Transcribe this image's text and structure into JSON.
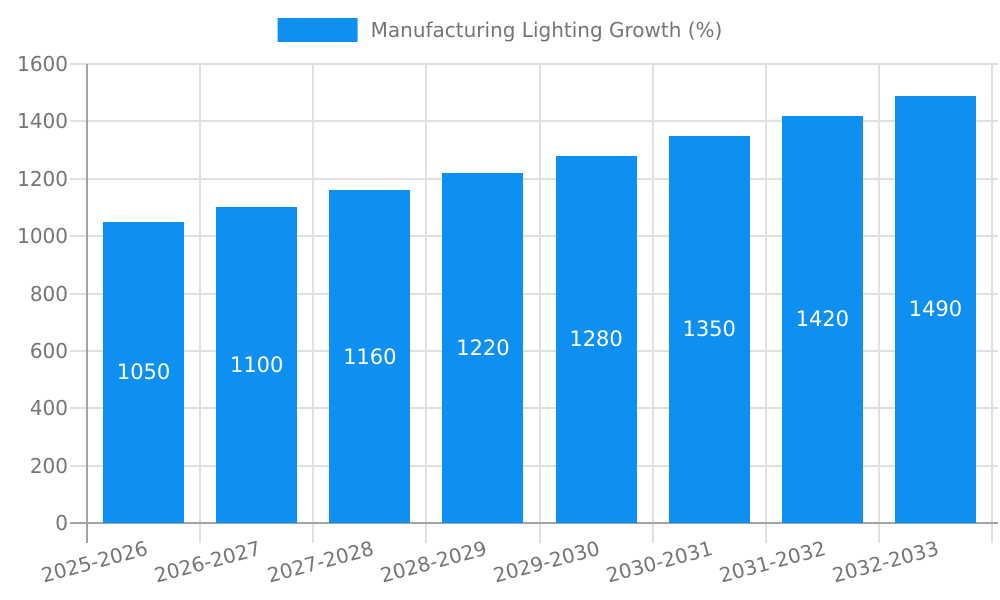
{
  "chart_data": {
    "type": "bar",
    "title": "Manufacturing Lighting Growth (%)",
    "categories": [
      "2025-2026",
      "2026-2027",
      "2027-2028",
      "2028-2029",
      "2029-2030",
      "2030-2031",
      "2031-2032",
      "2032-2033"
    ],
    "series": [
      {
        "name": "Manufacturing Lighting Growth (%)",
        "values": [
          1050,
          1100,
          1160,
          1220,
          1280,
          1350,
          1420,
          1490
        ]
      }
    ],
    "bar_value_labels": [
      "1050",
      "1100",
      "1160",
      "1220",
      "1280",
      "1350",
      "1420",
      "1490"
    ],
    "xlabel": "",
    "ylabel": "",
    "ylim": [
      0,
      1600
    ],
    "ytick_step": 200,
    "yticks": [
      0,
      200,
      400,
      600,
      800,
      1000,
      1200,
      1400,
      1600
    ],
    "grid": true,
    "legend_position": "top-center",
    "x_label_rotation_deg": -15,
    "colors": {
      "bar": "#0E8FF2",
      "bar_label_text": "#ffffff",
      "axis_text": "#757575",
      "gridline": "#e0e0e0",
      "axis_line": "#a3a3a3",
      "background": "#ffffff"
    }
  }
}
